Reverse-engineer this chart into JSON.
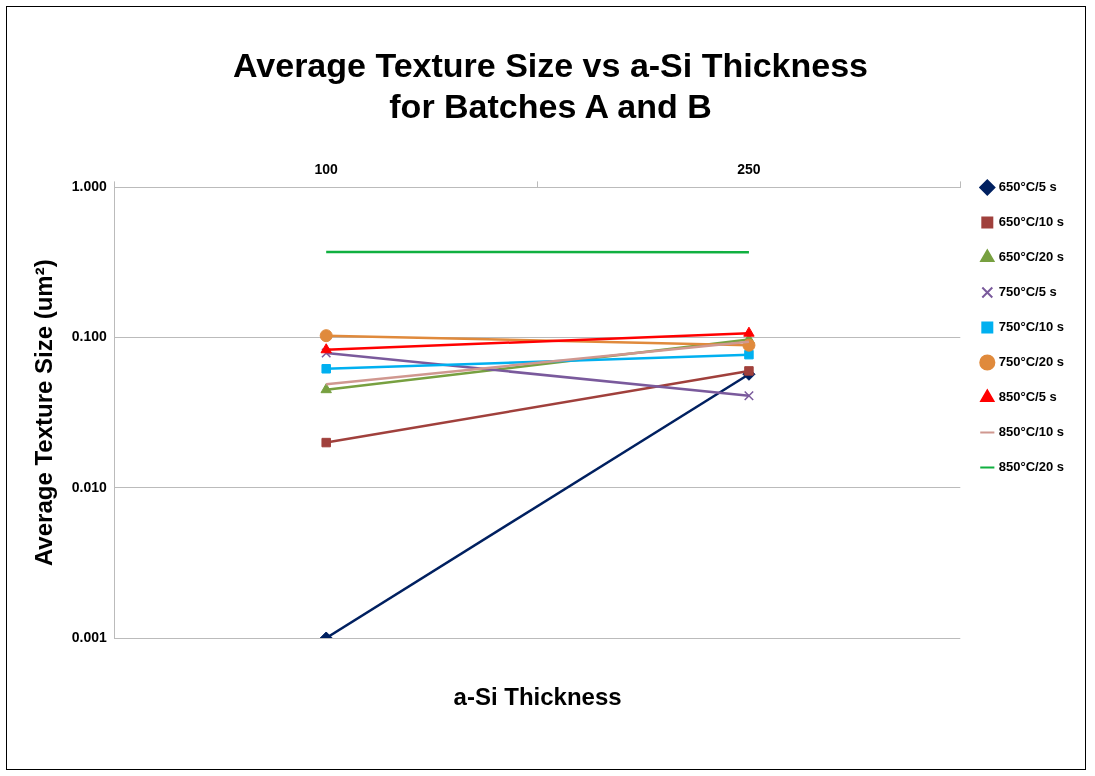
{
  "chart_data": {
    "type": "line",
    "title": "Average Texture Size vs a-Si Thickness\nfor Batches A and B",
    "xlabel": "a-Si Thickness",
    "ylabel": "Average Texture Size (um²)",
    "categories": [
      "100",
      "250"
    ],
    "log": "y",
    "ylim": [
      0.001,
      1
    ],
    "yticks": [
      {
        "value": 0.001,
        "label": "0.001"
      },
      {
        "value": 0.01,
        "label": "0.010"
      },
      {
        "value": 0.1,
        "label": "0.100"
      },
      {
        "value": 1,
        "label": "1.000"
      }
    ],
    "grid": "y",
    "legend": "right",
    "line_style": "solid",
    "series": [
      {
        "name": "650°C/5 s",
        "color": "#002060",
        "marker": "diamond",
        "values": [
          0.001,
          0.057
        ]
      },
      {
        "name": "650°C/10 s",
        "color": "#a0403c",
        "marker": "square",
        "values": [
          0.02,
          0.06
        ]
      },
      {
        "name": "650°C/20 s",
        "color": "#77a040",
        "marker": "triangle",
        "values": [
          0.045,
          0.097
        ]
      },
      {
        "name": "750°C/5 s",
        "color": "#7a5a9c",
        "marker": "cross",
        "values": [
          0.079,
          0.041
        ]
      },
      {
        "name": "750°C/10 s",
        "color": "#00b0f0",
        "marker": "square",
        "values": [
          0.062,
          0.077
        ]
      },
      {
        "name": "750°C/20 s",
        "color": "#e08a3c",
        "marker": "circle",
        "values": [
          0.103,
          0.089
        ]
      },
      {
        "name": "850°C/5 s",
        "color": "#ff0000",
        "marker": "triangle",
        "values": [
          0.083,
          0.107
        ]
      },
      {
        "name": "850°C/10 s",
        "color": "#d09890",
        "marker": "none",
        "values": [
          0.049,
          0.094
        ]
      },
      {
        "name": "850°C/20 s",
        "color": "#10b040",
        "marker": "none",
        "values": [
          0.372,
          0.37
        ]
      }
    ]
  }
}
